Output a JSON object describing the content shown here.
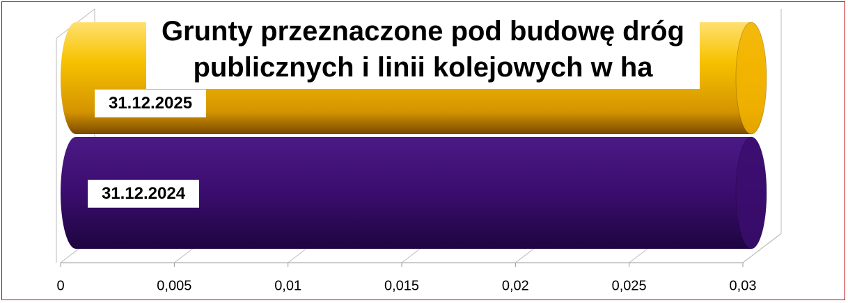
{
  "chart_data": {
    "type": "bar",
    "orientation": "horizontal",
    "title": "Grunty przeznaczone pod budowę dróg publicznych i linii kolejowych w ha",
    "categories": [
      "31.12.2025",
      "31.12.2024"
    ],
    "series": [
      {
        "name": "31.12.2025",
        "color": "#f2b300",
        "values": [
          0.03,
          null
        ]
      },
      {
        "name": "31.12.2024",
        "color": "#3b0d6e",
        "values": [
          null,
          0.03
        ]
      }
    ],
    "xlim": [
      0,
      0.03
    ],
    "xticks": [
      0,
      {
        "value": 0.005,
        "label": "0,005"
      },
      {
        "value": 0.01,
        "label": "0,01"
      },
      {
        "value": 0.015,
        "label": "0,015"
      },
      {
        "value": 0.02,
        "label": "0,02"
      },
      {
        "value": 0.025,
        "label": "0,025"
      },
      {
        "value": 0.03,
        "label": "0,03"
      }
    ]
  }
}
